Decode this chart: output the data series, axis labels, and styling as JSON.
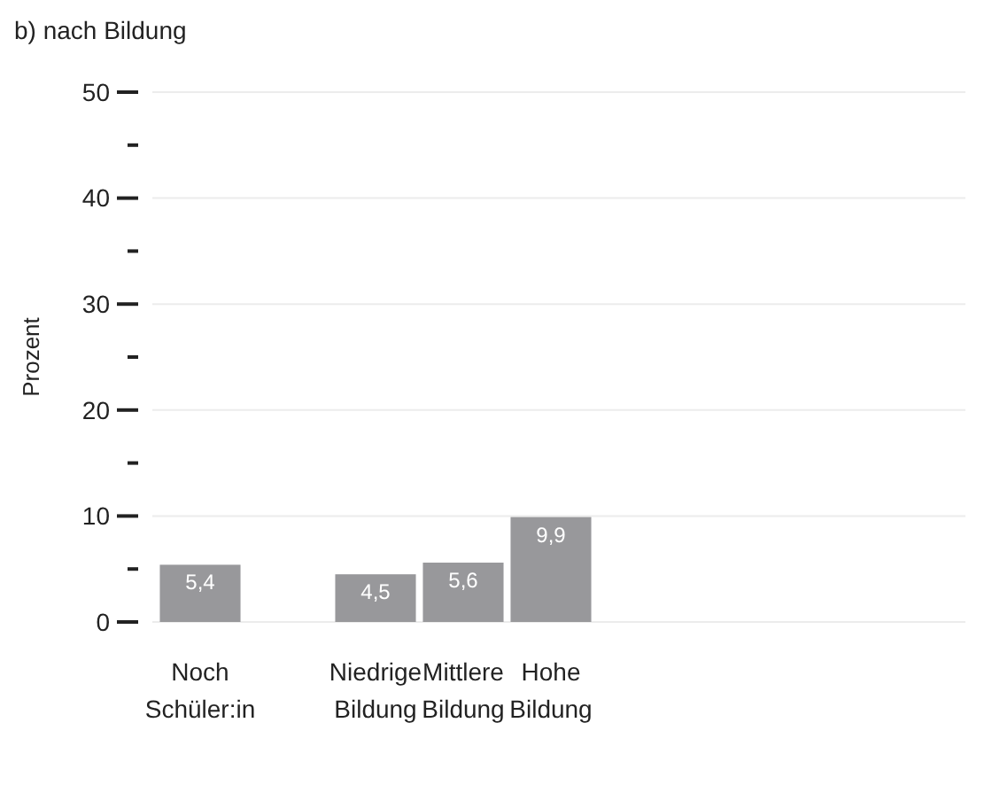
{
  "chart_data": {
    "type": "bar",
    "title": "b) nach Bildung",
    "ylabel": "Prozent",
    "categories": [
      "Noch Schüler:in",
      null,
      "Niedrige Bildung",
      "Mittlere Bildung",
      "Hohe Bildung"
    ],
    "values": [
      5.4,
      null,
      4.5,
      5.6,
      9.9
    ],
    "value_labels": [
      "5,4",
      null,
      "4,5",
      "5,6",
      "9,9"
    ],
    "color": "#98989b",
    "ylim": [
      0,
      50
    ],
    "yticks": [
      0,
      {
        "value": 5,
        "label": null
      },
      10,
      {
        "value": 15,
        "label": null
      },
      20,
      {
        "value": 25,
        "label": null
      },
      30,
      {
        "value": 35,
        "label": null
      },
      40,
      {
        "value": 45,
        "label": null
      },
      50
    ],
    "grid": "y"
  }
}
